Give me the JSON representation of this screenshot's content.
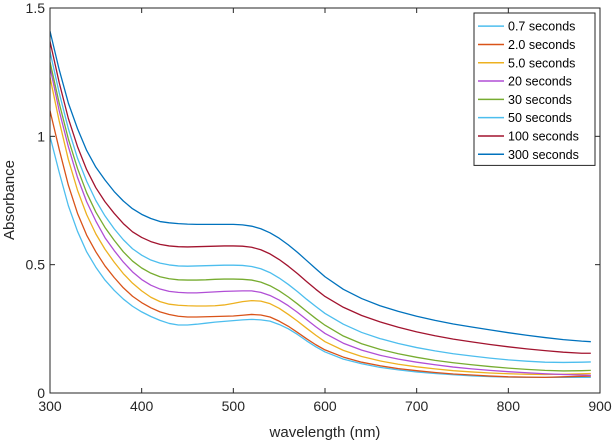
{
  "chart_data": {
    "type": "line",
    "xlabel": "wavelength (nm)",
    "ylabel": "Absorbance",
    "xlim": [
      300,
      900
    ],
    "ylim": [
      0,
      1.5
    ],
    "xticks": [
      "300",
      "400",
      "500",
      "600",
      "700",
      "800",
      "900"
    ],
    "yticks": [
      "0",
      "0.5",
      "1",
      "1.5"
    ],
    "grid": false,
    "legend_position": "top-right",
    "x": [
      300,
      310,
      320,
      330,
      340,
      350,
      360,
      370,
      380,
      390,
      400,
      410,
      420,
      430,
      440,
      450,
      460,
      470,
      480,
      490,
      500,
      510,
      520,
      530,
      540,
      550,
      560,
      570,
      580,
      590,
      600,
      620,
      640,
      660,
      680,
      700,
      720,
      740,
      760,
      780,
      800,
      820,
      840,
      860,
      880,
      890
    ],
    "series": [
      {
        "name": "0.7 seconds",
        "color": "#4DBEEE",
        "values": [
          1.0,
          0.86,
          0.73,
          0.63,
          0.55,
          0.49,
          0.44,
          0.4,
          0.366,
          0.338,
          0.316,
          0.298,
          0.283,
          0.271,
          0.265,
          0.265,
          0.268,
          0.272,
          0.276,
          0.279,
          0.282,
          0.285,
          0.287,
          0.285,
          0.28,
          0.267,
          0.25,
          0.228,
          0.203,
          0.18,
          0.16,
          0.132,
          0.114,
          0.1,
          0.09,
          0.082,
          0.076,
          0.071,
          0.067,
          0.064,
          0.062,
          0.061,
          0.061,
          0.061,
          0.061,
          0.061
        ]
      },
      {
        "name": "2.0 seconds",
        "color": "#D95319",
        "values": [
          1.1,
          0.95,
          0.81,
          0.7,
          0.615,
          0.55,
          0.495,
          0.45,
          0.41,
          0.377,
          0.352,
          0.332,
          0.316,
          0.306,
          0.299,
          0.296,
          0.296,
          0.297,
          0.298,
          0.299,
          0.3,
          0.303,
          0.306,
          0.304,
          0.296,
          0.28,
          0.26,
          0.236,
          0.211,
          0.188,
          0.168,
          0.14,
          0.12,
          0.106,
          0.095,
          0.087,
          0.08,
          0.074,
          0.07,
          0.066,
          0.063,
          0.062,
          0.061,
          0.063,
          0.065,
          0.066
        ]
      },
      {
        "name": "5.0 seconds",
        "color": "#EDB120",
        "values": [
          1.23,
          1.06,
          0.91,
          0.79,
          0.695,
          0.62,
          0.56,
          0.51,
          0.465,
          0.428,
          0.398,
          0.373,
          0.356,
          0.346,
          0.342,
          0.34,
          0.339,
          0.339,
          0.34,
          0.343,
          0.349,
          0.356,
          0.36,
          0.358,
          0.348,
          0.33,
          0.306,
          0.28,
          0.252,
          0.225,
          0.2,
          0.166,
          0.142,
          0.125,
          0.112,
          0.102,
          0.094,
          0.087,
          0.082,
          0.078,
          0.075,
          0.073,
          0.072,
          0.073,
          0.075,
          0.076
        ]
      },
      {
        "name": "20 seconds",
        "color": "#B14FD6",
        "values": [
          1.27,
          1.1,
          0.96,
          0.84,
          0.745,
          0.67,
          0.605,
          0.555,
          0.51,
          0.472,
          0.442,
          0.42,
          0.405,
          0.396,
          0.392,
          0.39,
          0.39,
          0.392,
          0.394,
          0.396,
          0.397,
          0.398,
          0.398,
          0.392,
          0.38,
          0.362,
          0.34,
          0.314,
          0.286,
          0.258,
          0.232,
          0.194,
          0.167,
          0.147,
          0.132,
          0.12,
          0.11,
          0.101,
          0.094,
          0.088,
          0.083,
          0.079,
          0.075,
          0.072,
          0.07,
          0.069
        ]
      },
      {
        "name": "30 seconds",
        "color": "#77AC30",
        "values": [
          1.29,
          1.13,
          0.99,
          0.875,
          0.78,
          0.705,
          0.645,
          0.595,
          0.55,
          0.514,
          0.487,
          0.467,
          0.453,
          0.445,
          0.441,
          0.44,
          0.44,
          0.441,
          0.443,
          0.444,
          0.444,
          0.443,
          0.44,
          0.432,
          0.418,
          0.398,
          0.374,
          0.347,
          0.318,
          0.29,
          0.264,
          0.222,
          0.192,
          0.17,
          0.153,
          0.139,
          0.127,
          0.118,
          0.11,
          0.103,
          0.097,
          0.092,
          0.088,
          0.086,
          0.087,
          0.088
        ]
      },
      {
        "name": "50 seconds",
        "color": "#4DBEEE",
        "values": [
          1.33,
          1.17,
          1.03,
          0.915,
          0.825,
          0.75,
          0.69,
          0.64,
          0.597,
          0.562,
          0.537,
          0.518,
          0.506,
          0.499,
          0.495,
          0.494,
          0.495,
          0.496,
          0.497,
          0.498,
          0.498,
          0.497,
          0.493,
          0.484,
          0.469,
          0.448,
          0.423,
          0.395,
          0.365,
          0.337,
          0.31,
          0.268,
          0.236,
          0.212,
          0.193,
          0.177,
          0.164,
          0.153,
          0.144,
          0.136,
          0.129,
          0.124,
          0.12,
          0.119,
          0.12,
          0.121
        ]
      },
      {
        "name": "100 seconds",
        "color": "#A2142F",
        "values": [
          1.37,
          1.21,
          1.07,
          0.96,
          0.87,
          0.8,
          0.745,
          0.7,
          0.66,
          0.628,
          0.606,
          0.59,
          0.579,
          0.573,
          0.57,
          0.569,
          0.57,
          0.571,
          0.572,
          0.573,
          0.573,
          0.572,
          0.568,
          0.558,
          0.542,
          0.52,
          0.494,
          0.465,
          0.434,
          0.404,
          0.376,
          0.334,
          0.302,
          0.277,
          0.256,
          0.238,
          0.223,
          0.21,
          0.199,
          0.189,
          0.18,
          0.172,
          0.165,
          0.159,
          0.155,
          0.155
        ]
      },
      {
        "name": "300 seconds",
        "color": "#0072BD",
        "values": [
          1.41,
          1.26,
          1.13,
          1.03,
          0.945,
          0.88,
          0.83,
          0.785,
          0.748,
          0.718,
          0.696,
          0.68,
          0.668,
          0.663,
          0.66,
          0.658,
          0.657,
          0.657,
          0.657,
          0.657,
          0.657,
          0.655,
          0.65,
          0.64,
          0.624,
          0.603,
          0.577,
          0.548,
          0.516,
          0.484,
          0.453,
          0.404,
          0.368,
          0.34,
          0.318,
          0.299,
          0.283,
          0.269,
          0.257,
          0.246,
          0.235,
          0.225,
          0.216,
          0.208,
          0.202,
          0.2
        ]
      }
    ]
  }
}
